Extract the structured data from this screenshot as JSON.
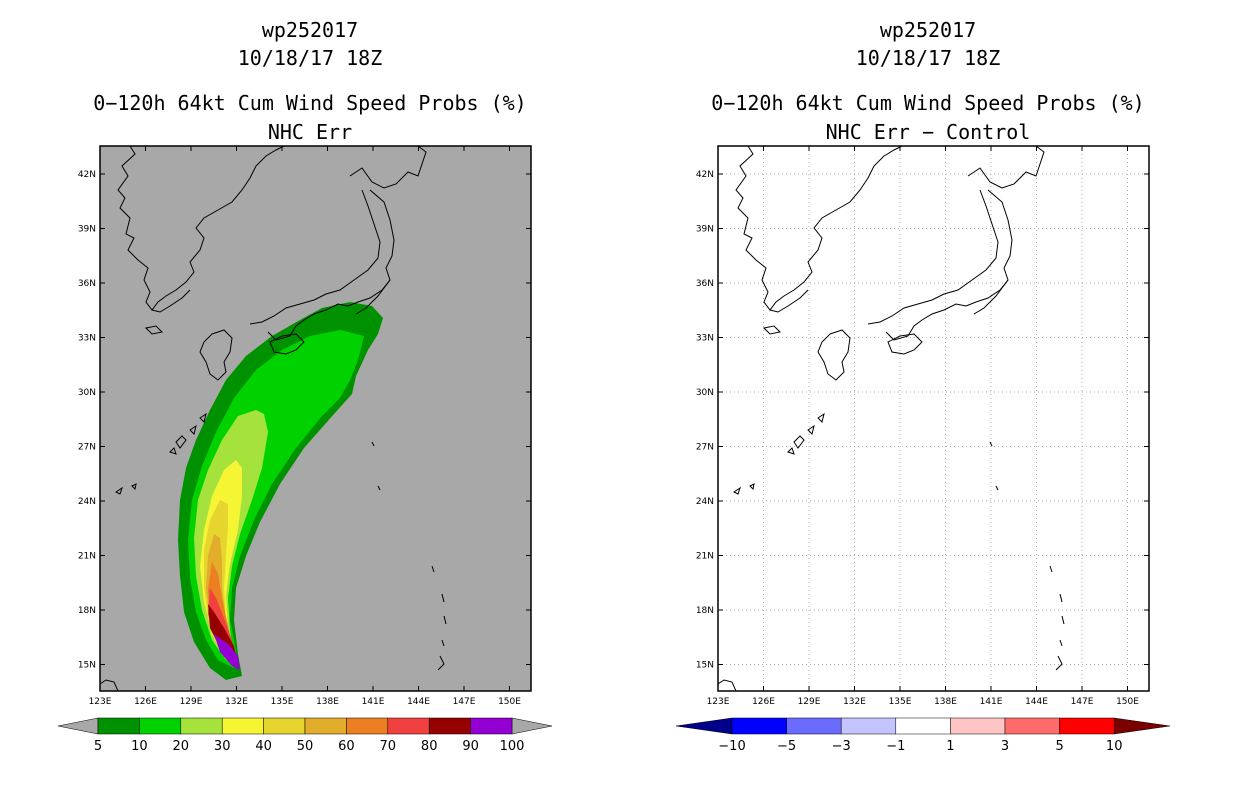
{
  "left_panel": {
    "storm_id": "wp252017",
    "datetime": "10/18/17 18Z",
    "title": "0−120h 64kt Cum Wind Speed Probs (%)",
    "subtitle": "NHC Err",
    "lat_labels": [
      "42N",
      "39N",
      "36N",
      "33N",
      "30N",
      "27N",
      "24N",
      "21N",
      "18N",
      "15N"
    ],
    "lon_labels": [
      "123E",
      "126E",
      "129E",
      "132E",
      "135E",
      "138E",
      "141E",
      "144E",
      "147E",
      "150E"
    ],
    "colorbar": {
      "labels": [
        "5",
        "10",
        "20",
        "30",
        "40",
        "50",
        "60",
        "70",
        "80",
        "90",
        "100"
      ],
      "colors": [
        "#009100",
        "#00d200",
        "#a6e23c",
        "#f5f533",
        "#e6d42f",
        "#e2ad2b",
        "#eb7f21",
        "#f04040",
        "#960000",
        "#9400d3"
      ],
      "end_color": "#a8a8a8"
    }
  },
  "right_panel": {
    "storm_id": "wp252017",
    "datetime": "10/18/17 18Z",
    "title": "0−120h 64kt Cum Wind Speed Probs (%)",
    "subtitle": "NHC Err − Control",
    "lat_labels": [
      "42N",
      "39N",
      "36N",
      "33N",
      "30N",
      "27N",
      "24N",
      "21N",
      "18N",
      "15N"
    ],
    "lon_labels": [
      "123E",
      "126E",
      "129E",
      "132E",
      "135E",
      "138E",
      "141E",
      "144E",
      "147E",
      "150E"
    ],
    "colorbar": {
      "labels": [
        "−10",
        "−5",
        "−3",
        "−1",
        "1",
        "3",
        "5",
        "10"
      ],
      "colors": [
        "#0000ff",
        "#6b6bff",
        "#c4c4ff",
        "#ffffff",
        "#ffc4c4",
        "#ff6b6b",
        "#ff0000"
      ],
      "low_color": "#00008b",
      "high_color": "#7a0000"
    }
  },
  "map_background": "#a8a8a8",
  "coast_color": "#000000"
}
